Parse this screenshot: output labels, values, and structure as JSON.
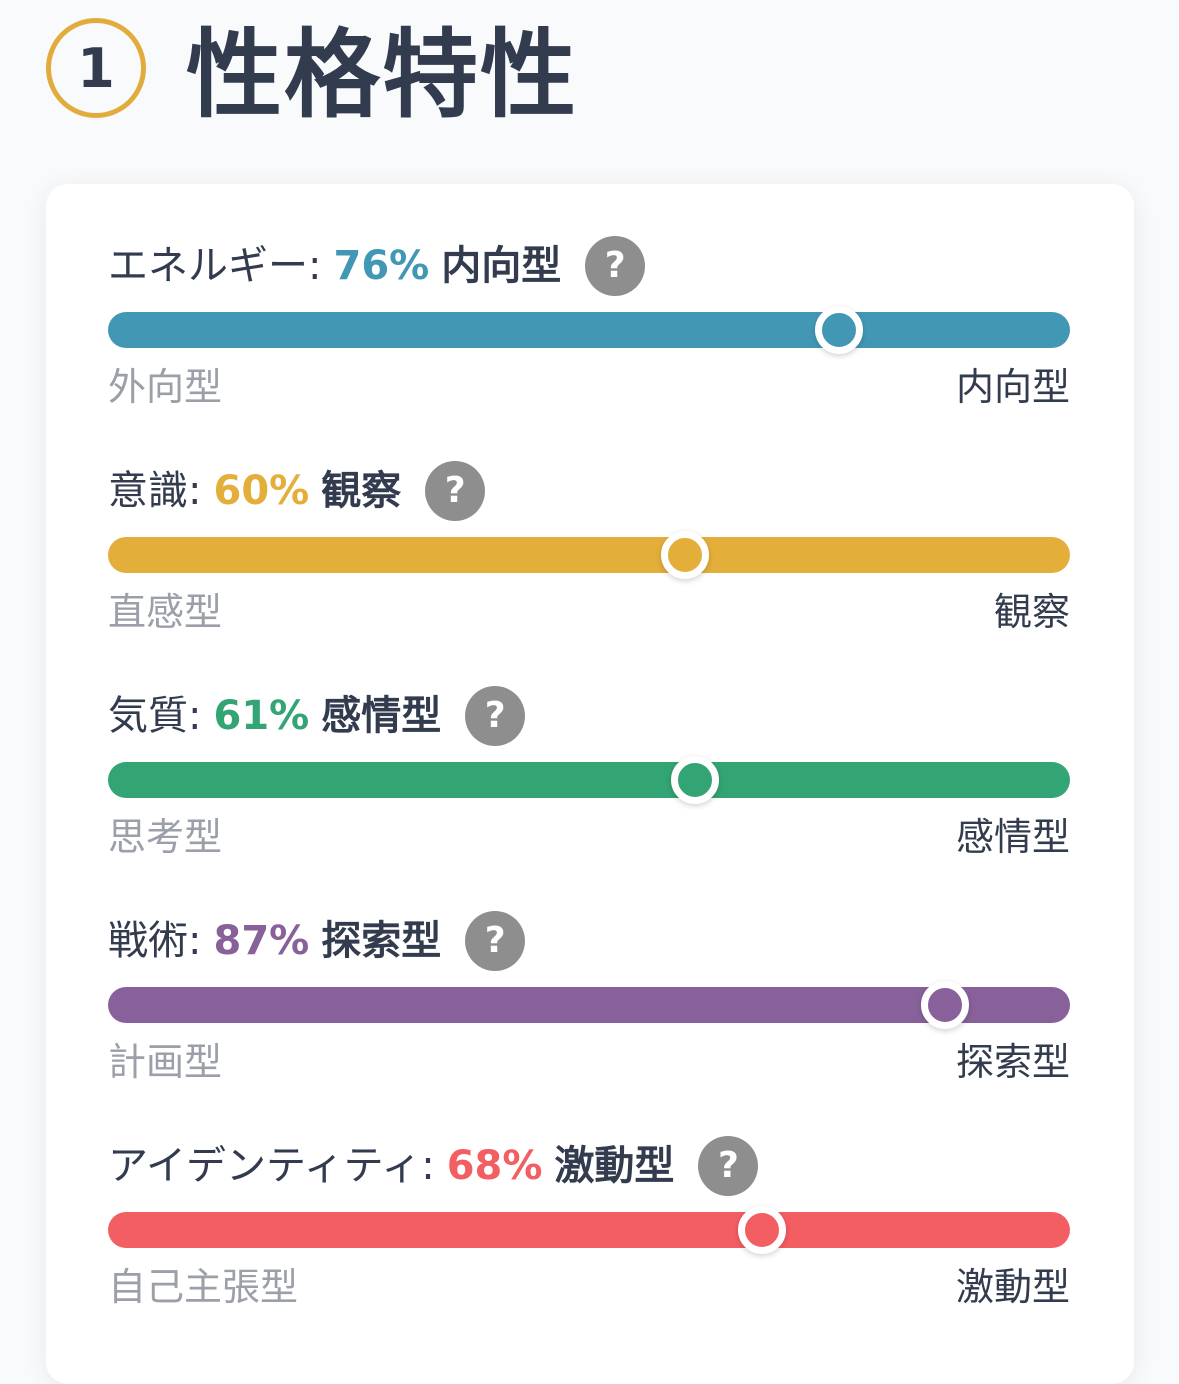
{
  "header": {
    "step_number": "1",
    "title": "性格特性"
  },
  "traits": [
    {
      "name": "エネルギー",
      "colon": ":",
      "percent_text": "76%",
      "result": "内向型",
      "left_label": "外向型",
      "right_label": "内向型",
      "value": 0.76,
      "color": "#4298b4",
      "help_icon": "question-mark-icon"
    },
    {
      "name": "意識",
      "colon": ":",
      "percent_text": "60%",
      "result": "観察",
      "left_label": "直感型",
      "right_label": "観察",
      "value": 0.6,
      "color": "#e4ae3a",
      "help_icon": "question-mark-icon"
    },
    {
      "name": "気質",
      "colon": ":",
      "percent_text": "61%",
      "result": "感情型",
      "left_label": "思考型",
      "right_label": "感情型",
      "value": 0.61,
      "color": "#33a474",
      "help_icon": "question-mark-icon"
    },
    {
      "name": "戦術",
      "colon": ":",
      "percent_text": "87%",
      "result": "探索型",
      "left_label": "計画型",
      "right_label": "探索型",
      "value": 0.87,
      "color": "#88619a",
      "help_icon": "question-mark-icon"
    },
    {
      "name": "アイデンティティ",
      "colon": ":",
      "percent_text": "68%",
      "result": "激動型",
      "left_label": "自己主張型",
      "right_label": "激動型",
      "value": 0.68,
      "color": "#f25e62",
      "help_icon": "question-mark-icon"
    }
  ],
  "help_glyph": "?"
}
